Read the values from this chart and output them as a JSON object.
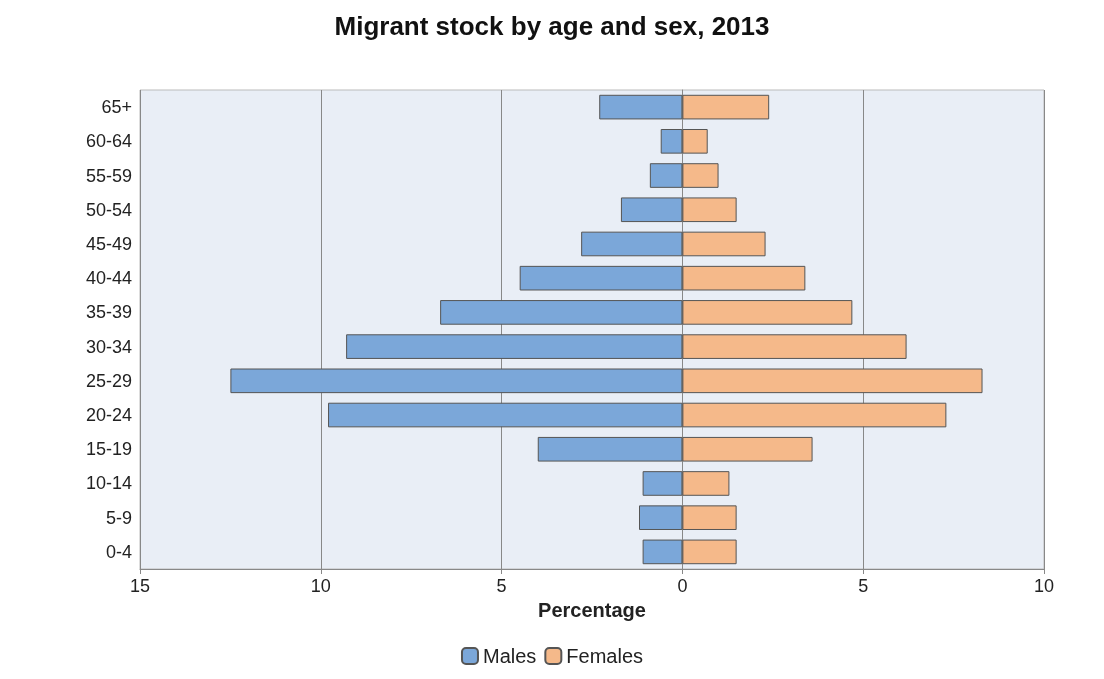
{
  "chart_data": {
    "type": "bar",
    "title": "Migrant stock by age and sex, 2013",
    "xlabel": "Percentage",
    "orientation": "horizontal",
    "stacked": true,
    "categories": [
      "65+",
      "60-64",
      "55-59",
      "50-54",
      "45-49",
      "40-44",
      "35-39",
      "30-34",
      "25-29",
      "20-24",
      "15-19",
      "10-14",
      "5-9",
      "0-4"
    ],
    "series": [
      {
        "name": "Males",
        "color": "#7ba7d9",
        "values": [
          -2.3,
          -0.6,
          -0.9,
          -1.7,
          -2.8,
          -4.5,
          -6.7,
          -9.3,
          -12.5,
          -9.8,
          -4.0,
          -1.1,
          -1.2,
          -1.1
        ]
      },
      {
        "name": "Females",
        "color": "#f5b98a",
        "values": [
          2.4,
          0.7,
          1.0,
          1.5,
          2.3,
          3.4,
          4.7,
          6.2,
          8.3,
          7.3,
          3.6,
          1.3,
          1.5,
          1.5
        ]
      }
    ],
    "xlim": [
      -15,
      10
    ],
    "xticks": [
      {
        "value": -15,
        "label": "15"
      },
      {
        "value": -10,
        "label": "10"
      },
      {
        "value": -5,
        "label": "5"
      },
      0,
      5,
      10
    ],
    "grid": "x",
    "legend": "bottom"
  }
}
